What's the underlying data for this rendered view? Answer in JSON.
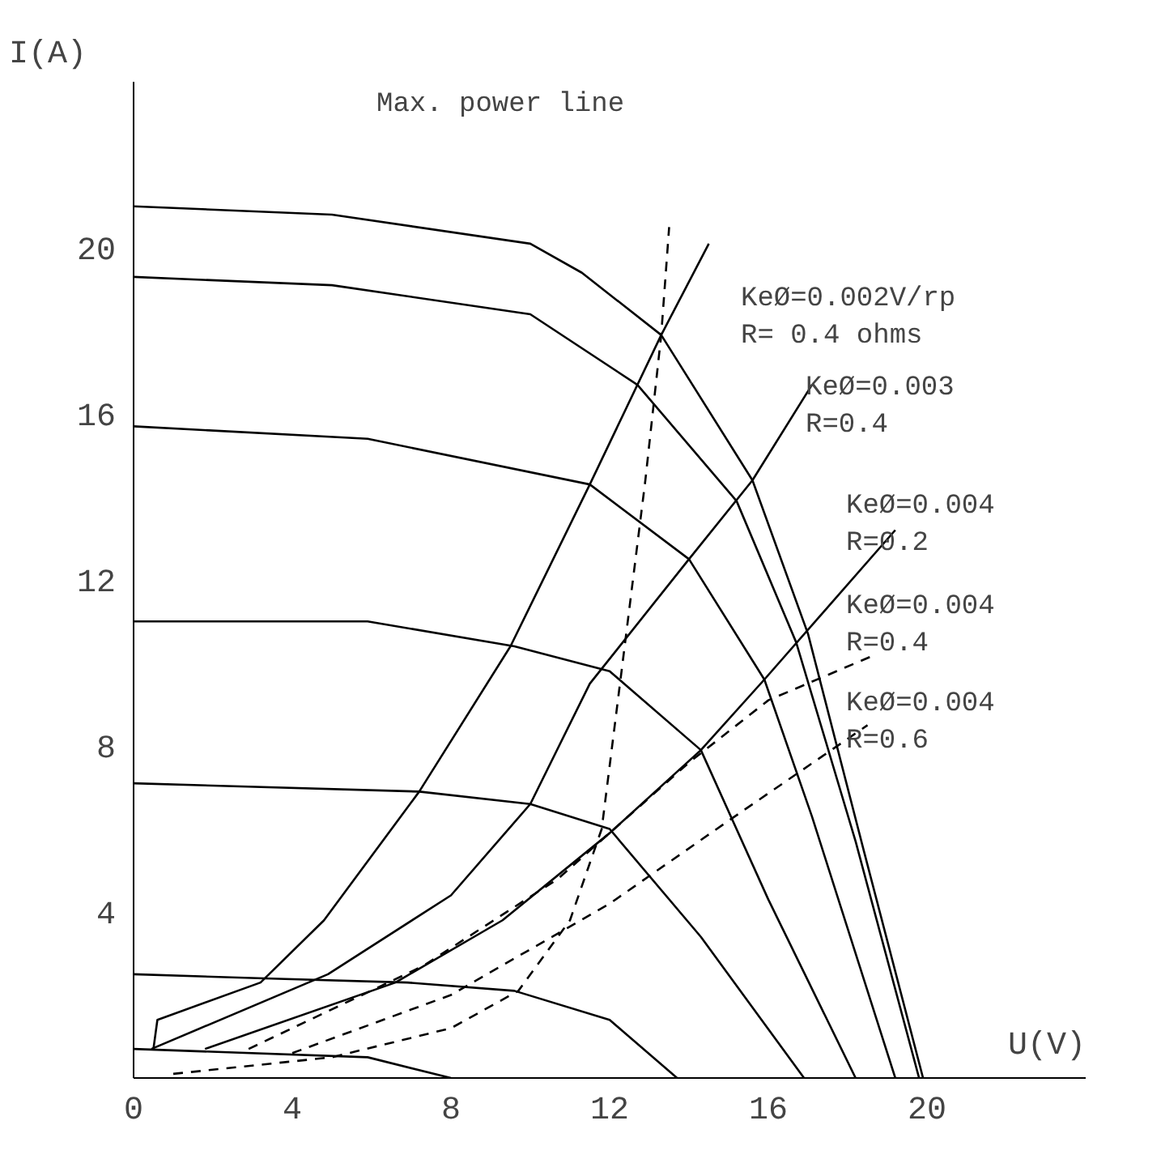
{
  "chart_data": {
    "type": "line",
    "xlabel": "U(V)",
    "ylabel": "I(A)",
    "xlim": [
      0,
      24
    ],
    "ylim": [
      0,
      24
    ],
    "xticks": [
      0,
      4,
      8,
      12,
      16,
      20
    ],
    "yticks": [
      4,
      8,
      12,
      16,
      20
    ],
    "series": [
      {
        "color": "#000000",
        "line_style": "solid",
        "x": [
          0,
          5,
          10,
          11.3,
          13.3,
          15.6,
          17.0,
          18.4,
          19.9
        ],
        "values": [
          21.0,
          20.8,
          20.1,
          19.4,
          17.9,
          14.4,
          10.7,
          5.5,
          0
        ]
      },
      {
        "color": "#000000",
        "line_style": "solid",
        "x": [
          0,
          5,
          10,
          12.7,
          15.2,
          16.7,
          18.2,
          19.8
        ],
        "values": [
          19.3,
          19.1,
          18.4,
          16.7,
          13.9,
          10.5,
          5.7,
          0
        ]
      },
      {
        "color": "#000000",
        "line_style": "solid",
        "x": [
          0,
          5.9,
          11.5,
          14.0,
          15.9,
          17.1,
          19.2
        ],
        "values": [
          15.7,
          15.4,
          14.3,
          12.5,
          9.6,
          6.3,
          0
        ]
      },
      {
        "color": "#000000",
        "line_style": "solid",
        "x": [
          0,
          5.9,
          9.6,
          12.0,
          14.3,
          16.0,
          18.2
        ],
        "values": [
          11.0,
          11.0,
          10.4,
          9.8,
          7.9,
          4.3,
          0
        ]
      },
      {
        "color": "#000000",
        "line_style": "solid",
        "x": [
          0,
          7.2,
          10.0,
          12.0,
          14.3,
          16.9
        ],
        "values": [
          7.1,
          6.9,
          6.6,
          6.0,
          3.4,
          0
        ]
      },
      {
        "color": "#000000",
        "line_style": "solid",
        "x": [
          0,
          3.3,
          6.9,
          9.6,
          12.0,
          13.7
        ],
        "values": [
          2.5,
          2.4,
          2.3,
          2.1,
          1.4,
          0
        ]
      },
      {
        "color": "#000000",
        "line_style": "solid",
        "x": [
          0,
          5.9,
          8.0
        ],
        "values": [
          0.7,
          0.5,
          0
        ]
      },
      {
        "color": "#000000",
        "line_style": "solid",
        "x": [
          0.5,
          0.6,
          3.2,
          4.8,
          7.2,
          9.5,
          11.5,
          13.3,
          14.5
        ],
        "values": [
          0.7,
          1.4,
          2.3,
          3.8,
          6.9,
          10.4,
          14.3,
          17.9,
          20.1
        ]
      },
      {
        "color": "#000000",
        "line_style": "solid",
        "x": [
          0.45,
          4.9,
          8.0,
          10.0,
          11.5,
          14.0,
          15.6,
          17.1
        ],
        "values": [
          0.7,
          2.5,
          4.4,
          6.6,
          9.5,
          12.5,
          14.4,
          16.7
        ]
      },
      {
        "color": "#000000",
        "line_style": "solid",
        "x": [
          1.8,
          6.6,
          9.3,
          12.0,
          14.3,
          15.9,
          19.2
        ],
        "values": [
          0.7,
          2.3,
          3.8,
          5.9,
          7.9,
          9.6,
          13.2
        ]
      },
      {
        "color": "#000000",
        "line_style": "dashed",
        "x": [
          2.9,
          7.3,
          10.7,
          14.0,
          16.0,
          18.7
        ],
        "values": [
          0.7,
          2.7,
          4.8,
          7.6,
          9.1,
          10.2
        ]
      },
      {
        "color": "#000000",
        "line_style": "dashed",
        "x": [
          4.0,
          8.0,
          12.0,
          15.0,
          18.5
        ],
        "values": [
          0.6,
          2.0,
          4.2,
          6.2,
          8.5
        ]
      },
      {
        "color": "#000000",
        "line_style": "dashed",
        "x": [
          1.0,
          5.0,
          8.0,
          9.7,
          11.0,
          11.8,
          12.3,
          12.9,
          13.3,
          13.5
        ],
        "values": [
          0.1,
          0.5,
          1.2,
          2.1,
          3.8,
          6.0,
          9.8,
          14.4,
          17.9,
          20.5
        ]
      }
    ],
    "annotations": [
      "Max. power line",
      "KeØ=0.002V/rp\n R= 0.4 ohms",
      "KeØ=0.003\n R=0.4",
      "KeØ=0.004\n  R=0.2",
      "KeØ=0.004\n  R=0.4",
      "KeØ=0.004\n  R=0.6"
    ]
  }
}
